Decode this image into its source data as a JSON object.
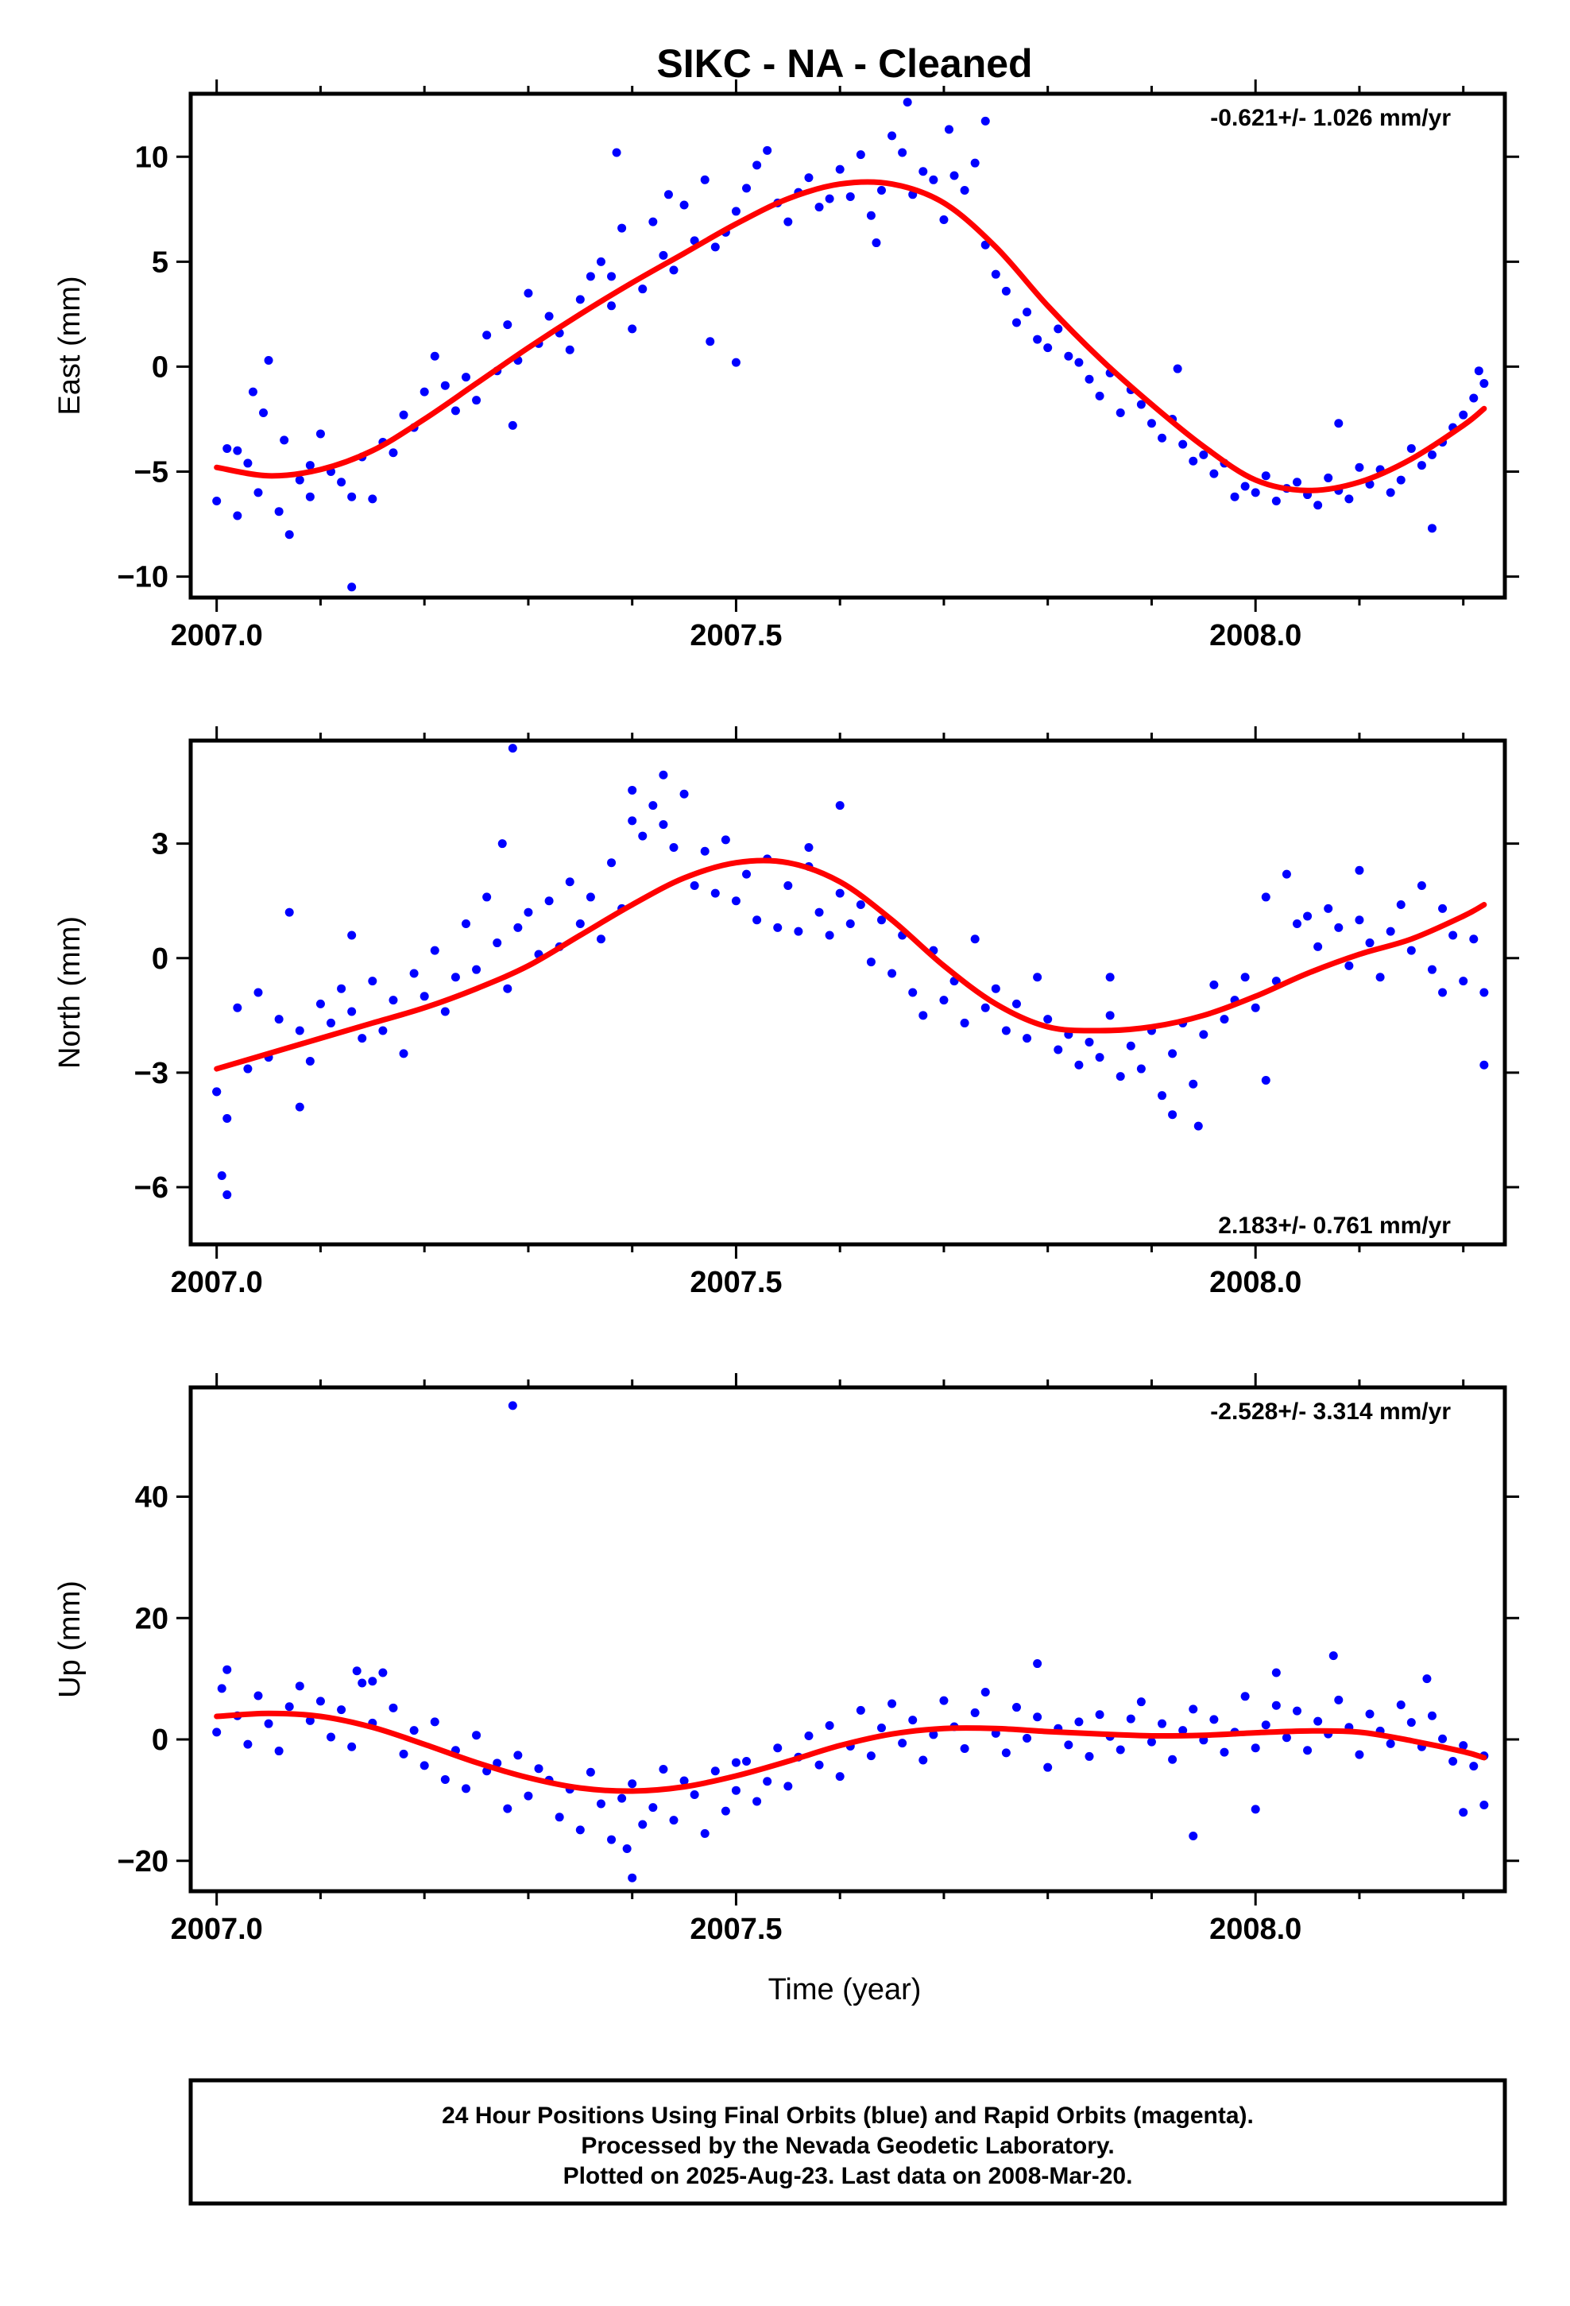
{
  "title": "SIKC  - NA - Cleaned",
  "xlabel": "Time (year)",
  "footer": {
    "line1": "24 Hour Positions Using Final Orbits (blue) and Rapid Orbits (magenta).",
    "line2": "Processed by the Nevada Geodetic Laboratory.",
    "line3": "Plotted on 2025-Aug-23. Last data on 2008-Mar-20."
  },
  "colors": {
    "points": "#0000ff",
    "fit": "#ff0000",
    "frame": "#000000"
  },
  "chart_data": [
    {
      "type": "scatter",
      "ylabel": "East (mm)",
      "rate": "-0.621+/- 1.026 mm/yr",
      "rate_position": "top-right",
      "xlim": [
        2006.975,
        2008.24
      ],
      "ylim": [
        -11,
        13
      ],
      "yticks": [
        10,
        5,
        0,
        -5,
        -10
      ],
      "xticks": [
        2007.0,
        2007.5,
        2008.0
      ],
      "xtick_labels": [
        "2007.0",
        "2007.5",
        "2008.0"
      ],
      "fit_x": [
        2007.0,
        2007.05,
        2007.1,
        2007.15,
        2007.2,
        2007.25,
        2007.3,
        2007.35,
        2007.4,
        2007.45,
        2007.5,
        2007.55,
        2007.6,
        2007.65,
        2007.7,
        2007.75,
        2007.8,
        2007.85,
        2007.9,
        2007.95,
        2008.0,
        2008.05,
        2008.1,
        2008.15,
        2008.2,
        2008.22
      ],
      "fit_y": [
        -4.8,
        -5.2,
        -4.9,
        -4.0,
        -2.5,
        -0.8,
        0.9,
        2.5,
        4.0,
        5.4,
        6.8,
        8.0,
        8.7,
        8.7,
        7.8,
        5.7,
        2.9,
        0.4,
        -1.8,
        -3.8,
        -5.4,
        -5.9,
        -5.5,
        -4.4,
        -2.8,
        -2.0
      ],
      "points": {
        "x": [
          2007.0,
          2007.01,
          2007.02,
          2007.03,
          2007.04,
          2007.05,
          2007.06,
          2007.07,
          2007.08,
          2007.09,
          2007.1,
          2007.11,
          2007.12,
          2007.13,
          2007.14,
          2007.15,
          2007.16,
          2007.17,
          2007.18,
          2007.19,
          2007.2,
          2007.21,
          2007.22,
          2007.23,
          2007.24,
          2007.25,
          2007.26,
          2007.27,
          2007.28,
          2007.29,
          2007.3,
          2007.31,
          2007.32,
          2007.33,
          2007.34,
          2007.35,
          2007.36,
          2007.37,
          2007.38,
          2007.39,
          2007.4,
          2007.41,
          2007.42,
          2007.43,
          2007.44,
          2007.45,
          2007.46,
          2007.47,
          2007.48,
          2007.49,
          2007.5,
          2007.51,
          2007.52,
          2007.53,
          2007.54,
          2007.55,
          2007.56,
          2007.57,
          2007.58,
          2007.59,
          2007.6,
          2007.61,
          2007.62,
          2007.63,
          2007.64,
          2007.65,
          2007.66,
          2007.67,
          2007.68,
          2007.69,
          2007.7,
          2007.71,
          2007.72,
          2007.73,
          2007.74,
          2007.75,
          2007.76,
          2007.77,
          2007.78,
          2007.79,
          2007.8,
          2007.81,
          2007.82,
          2007.83,
          2007.84,
          2007.85,
          2007.86,
          2007.87,
          2007.88,
          2007.89,
          2007.9,
          2007.91,
          2007.92,
          2007.93,
          2007.94,
          2007.95,
          2007.96,
          2007.97,
          2007.98,
          2007.99,
          2008.0,
          2008.01,
          2008.02,
          2008.03,
          2008.04,
          2008.05,
          2008.06,
          2008.07,
          2008.08,
          2008.09,
          2008.1,
          2008.11,
          2008.12,
          2008.13,
          2008.14,
          2008.15,
          2008.16,
          2008.17,
          2008.18,
          2008.19,
          2008.2,
          2008.21,
          2008.22,
          2007.02,
          2007.035,
          2007.045,
          2007.065,
          2007.09,
          2007.13,
          2007.285,
          2007.385,
          2007.38,
          2007.435,
          2007.475,
          2007.5,
          2007.635,
          2007.665,
          2007.705,
          2007.74,
          2007.925,
          2008.08,
          2008.17,
          2008.215
        ],
        "y": [
          -6.4,
          -3.9,
          -7.1,
          -4.6,
          -6.0,
          0.3,
          -6.9,
          -8.0,
          -5.4,
          -4.7,
          -3.2,
          -5.0,
          -5.5,
          -6.2,
          -4.3,
          -6.3,
          -3.6,
          -4.1,
          -2.3,
          -2.9,
          -1.2,
          0.5,
          -0.9,
          -2.1,
          -0.5,
          -1.6,
          1.5,
          -0.2,
          2.0,
          0.3,
          3.5,
          1.1,
          2.4,
          1.6,
          0.8,
          3.2,
          4.3,
          5.0,
          2.9,
          6.6,
          1.8,
          3.7,
          6.9,
          5.3,
          4.6,
          7.7,
          6.0,
          8.9,
          5.7,
          6.4,
          7.4,
          8.5,
          9.6,
          10.3,
          7.8,
          6.9,
          8.3,
          9.0,
          7.6,
          8.0,
          9.4,
          8.1,
          10.1,
          7.2,
          8.4,
          11.0,
          10.2,
          8.2,
          9.3,
          8.9,
          7.0,
          9.1,
          8.4,
          9.7,
          5.8,
          4.4,
          3.6,
          2.1,
          2.6,
          1.3,
          0.9,
          1.8,
          0.5,
          0.2,
          -0.6,
          -1.4,
          -0.3,
          -2.2,
          -1.1,
          -1.8,
          -2.7,
          -3.4,
          -2.5,
          -3.7,
          -4.5,
          -4.2,
          -5.1,
          -4.6,
          -6.2,
          -5.7,
          -6.0,
          -5.2,
          -6.4,
          -5.8,
          -5.5,
          -6.1,
          -6.6,
          -5.3,
          -5.9,
          -6.3,
          -4.8,
          -5.6,
          -4.9,
          -6.0,
          -5.4,
          -3.9,
          -4.7,
          -4.2,
          -3.6,
          -2.9,
          -2.3,
          -1.5,
          -0.8,
          -4.0,
          -1.2,
          -2.2,
          -3.5,
          -6.2,
          -10.5,
          -2.8,
          10.2,
          4.3,
          8.2,
          1.2,
          0.2,
          5.9,
          12.6,
          11.3,
          11.7,
          -0.1,
          -2.7,
          -7.7,
          -0.2
        ]
      }
    },
    {
      "type": "scatter",
      "ylabel": "North (mm)",
      "rate": "2.183+/- 0.761 mm/yr",
      "rate_position": "bottom-right",
      "xlim": [
        2006.975,
        2008.24
      ],
      "ylim": [
        -7.5,
        5.7
      ],
      "yticks": [
        3,
        0,
        -3,
        -6
      ],
      "xticks": [
        2007.0,
        2007.5,
        2008.0
      ],
      "xtick_labels": [
        "2007.0",
        "2007.5",
        "2008.0"
      ],
      "fit_x": [
        2007.0,
        2007.05,
        2007.1,
        2007.15,
        2007.2,
        2007.25,
        2007.3,
        2007.35,
        2007.4,
        2007.45,
        2007.5,
        2007.55,
        2007.6,
        2007.65,
        2007.7,
        2007.75,
        2007.8,
        2007.85,
        2007.9,
        2007.95,
        2008.0,
        2008.05,
        2008.1,
        2008.15,
        2008.2,
        2008.22
      ],
      "fit_y": [
        -2.9,
        -2.5,
        -2.1,
        -1.7,
        -1.3,
        -0.8,
        -0.2,
        0.6,
        1.4,
        2.1,
        2.5,
        2.5,
        2.0,
        1.0,
        -0.2,
        -1.2,
        -1.8,
        -1.9,
        -1.8,
        -1.5,
        -1.0,
        -0.4,
        0.1,
        0.5,
        1.1,
        1.4
      ],
      "points": {
        "x": [
          2007.0,
          2007.01,
          2007.02,
          2007.03,
          2007.04,
          2007.05,
          2007.06,
          2007.07,
          2007.08,
          2007.09,
          2007.1,
          2007.11,
          2007.12,
          2007.13,
          2007.14,
          2007.15,
          2007.16,
          2007.17,
          2007.18,
          2007.19,
          2007.2,
          2007.21,
          2007.22,
          2007.23,
          2007.24,
          2007.25,
          2007.26,
          2007.27,
          2007.28,
          2007.29,
          2007.3,
          2007.31,
          2007.32,
          2007.33,
          2007.34,
          2007.35,
          2007.36,
          2007.37,
          2007.38,
          2007.39,
          2007.4,
          2007.41,
          2007.42,
          2007.43,
          2007.44,
          2007.45,
          2007.46,
          2007.47,
          2007.48,
          2007.49,
          2007.5,
          2007.51,
          2007.52,
          2007.53,
          2007.54,
          2007.55,
          2007.56,
          2007.57,
          2007.58,
          2007.59,
          2007.6,
          2007.61,
          2007.62,
          2007.63,
          2007.64,
          2007.65,
          2007.66,
          2007.67,
          2007.68,
          2007.69,
          2007.7,
          2007.71,
          2007.72,
          2007.73,
          2007.74,
          2007.75,
          2007.76,
          2007.77,
          2007.78,
          2007.79,
          2007.8,
          2007.81,
          2007.82,
          2007.83,
          2007.84,
          2007.85,
          2007.86,
          2007.87,
          2007.88,
          2007.89,
          2007.9,
          2007.91,
          2007.92,
          2007.93,
          2007.94,
          2007.95,
          2007.96,
          2007.97,
          2007.98,
          2007.99,
          2008.0,
          2008.01,
          2008.02,
          2008.03,
          2008.04,
          2008.05,
          2008.06,
          2008.07,
          2008.08,
          2008.09,
          2008.1,
          2008.11,
          2008.12,
          2008.13,
          2008.14,
          2008.15,
          2008.16,
          2008.17,
          2008.18,
          2008.19,
          2008.2,
          2008.21,
          2008.22,
          2007.0,
          2007.005,
          2007.01,
          2007.08,
          2007.13,
          2007.285,
          2007.275,
          2007.4,
          2007.43,
          2007.57,
          2007.6,
          2007.86,
          2007.92,
          2007.945,
          2008.01,
          2008.1,
          2008.18,
          2008.22
        ],
        "y": [
          -3.5,
          -4.2,
          -1.3,
          -2.9,
          -0.9,
          -2.6,
          -1.6,
          1.2,
          -1.9,
          -2.7,
          -1.2,
          -1.7,
          -0.8,
          -1.4,
          -2.1,
          -0.6,
          -1.9,
          -1.1,
          -2.5,
          -0.4,
          -1.0,
          0.2,
          -1.4,
          -0.5,
          0.9,
          -0.3,
          1.6,
          0.4,
          -0.8,
          0.8,
          1.2,
          0.1,
          1.5,
          0.3,
          2.0,
          0.9,
          1.6,
          0.5,
          2.5,
          1.3,
          4.4,
          3.2,
          4.0,
          3.5,
          2.9,
          4.3,
          1.9,
          2.8,
          1.7,
          3.1,
          1.5,
          2.2,
          1.0,
          2.6,
          0.8,
          1.9,
          0.7,
          2.4,
          1.2,
          0.6,
          1.7,
          0.9,
          1.4,
          -0.1,
          1.0,
          -0.4,
          0.6,
          -0.9,
          -1.5,
          0.2,
          -1.1,
          -0.6,
          -1.7,
          0.5,
          -1.3,
          -0.8,
          -1.9,
          -1.2,
          -2.1,
          -0.5,
          -1.6,
          -2.4,
          -2.0,
          -2.8,
          -2.2,
          -2.6,
          -1.5,
          -3.1,
          -2.3,
          -2.9,
          -1.9,
          -3.6,
          -2.5,
          -1.7,
          -3.3,
          -2.0,
          -0.7,
          -1.6,
          -1.1,
          -0.5,
          -1.3,
          1.6,
          -0.6,
          2.2,
          0.9,
          1.1,
          0.3,
          1.3,
          0.8,
          -0.2,
          1.0,
          0.4,
          -0.5,
          0.7,
          1.4,
          0.2,
          1.9,
          -0.3,
          1.3,
          0.6,
          -0.6,
          0.5,
          -0.9,
          -3.5,
          -5.7,
          -6.2,
          -3.9,
          0.6,
          5.5,
          3.0,
          3.6,
          4.8,
          2.9,
          4.0,
          -0.5,
          -4.1,
          -4.4,
          -3.2,
          2.3,
          -0.9,
          -2.8
        ]
      }
    },
    {
      "type": "scatter",
      "ylabel": "Up (mm)",
      "rate": "-2.528+/- 3.314 mm/yr",
      "rate_position": "top-right",
      "xlim": [
        2006.975,
        2008.24
      ],
      "ylim": [
        -25,
        58
      ],
      "yticks": [
        40,
        20,
        0,
        -20
      ],
      "xticks": [
        2007.0,
        2007.5,
        2008.0
      ],
      "xtick_labels": [
        "2007.0",
        "2007.5",
        "2008.0"
      ],
      "fit_x": [
        2007.0,
        2007.05,
        2007.1,
        2007.15,
        2007.2,
        2007.25,
        2007.3,
        2007.35,
        2007.4,
        2007.45,
        2007.5,
        2007.55,
        2007.6,
        2007.65,
        2007.7,
        2007.75,
        2007.8,
        2007.85,
        2007.9,
        2007.95,
        2008.0,
        2008.05,
        2008.1,
        2008.15,
        2008.2,
        2008.22
      ],
      "fit_y": [
        3.8,
        4.3,
        3.8,
        2.0,
        -0.8,
        -3.8,
        -6.3,
        -8.0,
        -8.5,
        -7.8,
        -6.0,
        -3.6,
        -1.0,
        0.9,
        1.8,
        1.8,
        1.3,
        0.9,
        0.6,
        0.7,
        1.1,
        1.4,
        1.2,
        -0.2,
        -2.0,
        -3.0
      ],
      "points": {
        "x": [
          2007.0,
          2007.01,
          2007.02,
          2007.03,
          2007.04,
          2007.05,
          2007.06,
          2007.07,
          2007.08,
          2007.09,
          2007.1,
          2007.11,
          2007.12,
          2007.13,
          2007.14,
          2007.15,
          2007.16,
          2007.17,
          2007.18,
          2007.19,
          2007.2,
          2007.21,
          2007.22,
          2007.23,
          2007.24,
          2007.25,
          2007.26,
          2007.27,
          2007.28,
          2007.29,
          2007.3,
          2007.31,
          2007.32,
          2007.33,
          2007.34,
          2007.35,
          2007.36,
          2007.37,
          2007.38,
          2007.39,
          2007.4,
          2007.41,
          2007.42,
          2007.43,
          2007.44,
          2007.45,
          2007.46,
          2007.47,
          2007.48,
          2007.49,
          2007.5,
          2007.51,
          2007.52,
          2007.53,
          2007.54,
          2007.55,
          2007.56,
          2007.57,
          2007.58,
          2007.59,
          2007.6,
          2007.61,
          2007.62,
          2007.63,
          2007.64,
          2007.65,
          2007.66,
          2007.67,
          2007.68,
          2007.69,
          2007.7,
          2007.71,
          2007.72,
          2007.73,
          2007.74,
          2007.75,
          2007.76,
          2007.77,
          2007.78,
          2007.79,
          2007.8,
          2007.81,
          2007.82,
          2007.83,
          2007.84,
          2007.85,
          2007.86,
          2007.87,
          2007.88,
          2007.89,
          2007.9,
          2007.91,
          2007.92,
          2007.93,
          2007.94,
          2007.95,
          2007.96,
          2007.97,
          2007.98,
          2007.99,
          2008.0,
          2008.01,
          2008.02,
          2008.03,
          2008.04,
          2008.05,
          2008.06,
          2008.07,
          2008.08,
          2008.09,
          2008.1,
          2008.11,
          2008.12,
          2008.13,
          2008.14,
          2008.15,
          2008.16,
          2008.17,
          2008.18,
          2008.19,
          2008.2,
          2008.21,
          2008.22,
          2007.005,
          2007.135,
          2007.15,
          2007.285,
          2007.4,
          2007.395,
          2007.5,
          2007.79,
          2007.94,
          2008.0,
          2008.02,
          2008.075,
          2008.165,
          2008.2,
          2008.22
        ],
        "y": [
          1.2,
          11.5,
          3.9,
          -0.8,
          7.2,
          2.6,
          -1.9,
          5.4,
          8.8,
          3.1,
          6.3,
          0.4,
          4.9,
          -1.2,
          9.3,
          2.7,
          11.0,
          5.2,
          -2.4,
          1.5,
          -4.3,
          2.9,
          -6.6,
          -1.8,
          -8.1,
          0.7,
          -5.2,
          -3.9,
          -11.4,
          -2.6,
          -9.3,
          -4.8,
          -6.7,
          -12.8,
          -8.2,
          -14.9,
          -5.4,
          -10.6,
          -16.5,
          -9.7,
          -7.3,
          -14.0,
          -11.2,
          -4.9,
          -13.3,
          -6.8,
          -9.1,
          -15.5,
          -5.2,
          -11.8,
          -8.4,
          -3.6,
          -10.2,
          -6.9,
          -1.4,
          -7.7,
          -2.9,
          0.6,
          -4.2,
          2.3,
          -6.1,
          -1.1,
          4.8,
          -2.7,
          1.9,
          5.9,
          -0.6,
          3.2,
          -3.4,
          0.8,
          6.4,
          2.1,
          -1.5,
          4.4,
          7.8,
          1.0,
          -2.2,
          5.3,
          0.2,
          3.7,
          -4.6,
          1.8,
          -0.9,
          2.9,
          -2.8,
          4.1,
          0.5,
          -1.7,
          3.4,
          6.2,
          -0.4,
          2.6,
          -3.3,
          1.5,
          5.0,
          -0.1,
          3.3,
          -2.1,
          1.2,
          7.1,
          -1.4,
          2.4,
          5.6,
          0.3,
          4.7,
          -1.8,
          3.0,
          0.9,
          6.5,
          2.0,
          -2.5,
          4.2,
          1.4,
          -0.7,
          5.7,
          2.8,
          -1.2,
          3.9,
          0.1,
          -3.6,
          -1.0,
          -4.4,
          -2.7,
          8.4,
          11.3,
          9.6,
          55.0,
          -22.8,
          -18.0,
          -3.8,
          12.5,
          -15.9,
          -11.5,
          11.0,
          13.8,
          10.0,
          -12.0,
          -10.8
        ]
      }
    }
  ]
}
